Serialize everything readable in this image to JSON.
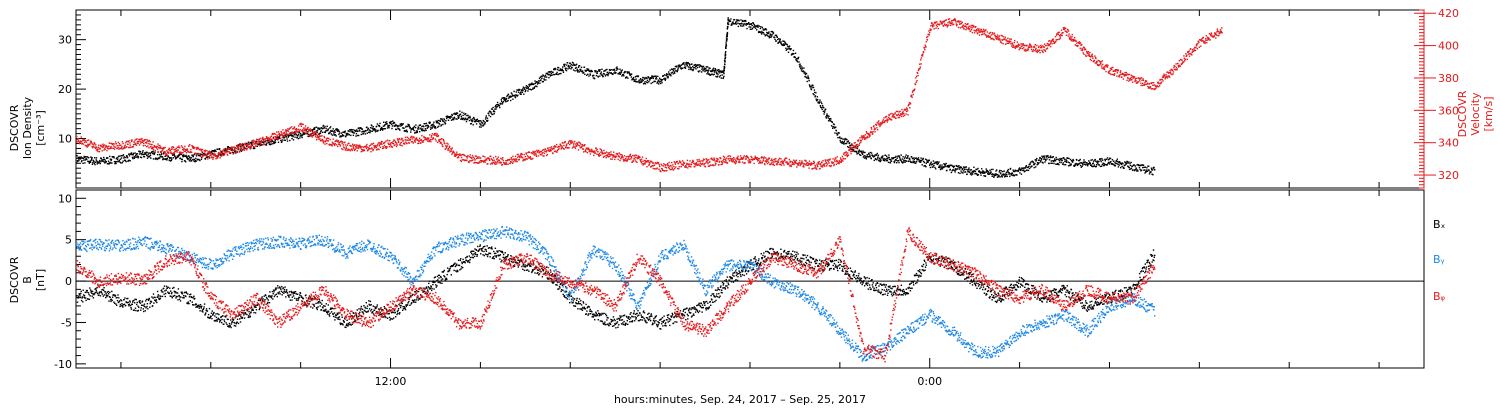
{
  "colors": {
    "black": "#000000",
    "red": "#e41a1c",
    "blue": "#1e88e5"
  },
  "x_axis": {
    "label": "hours:minutes, Sep. 24, 2017 – Sep. 25, 2017",
    "range_hours": [
      0,
      30
    ],
    "ticks": [
      {
        "hour": 7,
        "label": "12:00"
      },
      {
        "hour": 19,
        "label": "0:00"
      }
    ],
    "minor_step_hours": 2
  },
  "chart_data": [
    {
      "type": "scatter",
      "title": "",
      "xlabel": "",
      "y_left": {
        "label_lines": [
          "DSCOVR",
          "Ion Density",
          "[cm⁻³]"
        ],
        "range": [
          0,
          36
        ],
        "ticks": [
          10,
          20,
          30
        ]
      },
      "y_right": {
        "label_lines": [
          "DSCOVR",
          "Velocity",
          "[km/s]"
        ],
        "range": [
          312,
          422
        ],
        "ticks": [
          320,
          340,
          360,
          380,
          400,
          420
        ]
      },
      "series": [
        {
          "axis": "left",
          "color": "black",
          "x_hours": [
            0.0,
            0.5,
            1.0,
            1.5,
            2.0,
            2.5,
            3.0,
            3.5,
            4.0,
            4.5,
            5.0,
            5.5,
            6.0,
            6.5,
            7.0,
            7.5,
            8.0,
            8.5,
            9.0,
            9.5,
            10.0,
            10.5,
            11.0,
            11.5,
            12.0,
            12.5,
            13.0,
            13.5,
            14.0,
            14.4,
            14.5,
            15.0,
            15.5,
            16.0,
            16.5,
            17.0,
            17.5,
            18.0,
            18.5,
            19.0,
            19.5,
            20.0,
            20.5,
            21.0,
            21.5,
            22.0,
            22.5,
            23.0,
            23.5,
            24.0
          ],
          "values": [
            6,
            5.5,
            6,
            7,
            6.5,
            6,
            7,
            8,
            9,
            10,
            11,
            12,
            11,
            12,
            13,
            12,
            13,
            15,
            13,
            18,
            20,
            23,
            25,
            23,
            24,
            22,
            22,
            25,
            24,
            23,
            34,
            33,
            31,
            27,
            18,
            10,
            7,
            6,
            6,
            5,
            4,
            3.5,
            3,
            3.5,
            6,
            5.5,
            5,
            5.5,
            4.5,
            3.5
          ]
        },
        {
          "axis": "right",
          "color": "red",
          "x_hours": [
            0.0,
            0.5,
            1.0,
            1.5,
            2.0,
            2.5,
            3.0,
            3.5,
            4.0,
            4.5,
            5.0,
            5.5,
            6.0,
            6.5,
            7.0,
            7.5,
            8.0,
            8.5,
            9.0,
            9.5,
            10.0,
            10.5,
            11.0,
            11.5,
            12.0,
            12.5,
            13.0,
            13.5,
            14.0,
            14.5,
            15.0,
            15.5,
            16.0,
            16.5,
            17.0,
            17.5,
            18.0,
            18.5,
            19.0,
            19.5,
            20.0,
            20.5,
            21.0,
            21.5,
            22.0,
            22.5,
            23.0,
            23.5,
            24.0
          ],
          "values": [
            343,
            337,
            339,
            341,
            335,
            337,
            332,
            336,
            340,
            345,
            350,
            342,
            338,
            337,
            340,
            342,
            344,
            331,
            330,
            329,
            332,
            335,
            340,
            335,
            332,
            330,
            325,
            327,
            328,
            330,
            330,
            329,
            328,
            326,
            330,
            343,
            355,
            360,
            412,
            415,
            410,
            405,
            400,
            398,
            410,
            395,
            385,
            380,
            375
          ],
          "extra_x_hours": [
            24.5,
            25.0,
            25.5
          ],
          "extra_values": [
            388,
            402,
            410
          ]
        }
      ]
    },
    {
      "type": "scatter",
      "title": "",
      "xlabel": "",
      "y_left": {
        "label_lines": [
          "DSCOVR",
          "B",
          "[nT]"
        ],
        "range": [
          -10.5,
          11
        ],
        "ticks": [
          -10,
          -5,
          0,
          5,
          10
        ]
      },
      "legend": [
        "Bₓ",
        "Bᵧ",
        "Bᵩ"
      ],
      "legend_text": {
        "bx": "Bx",
        "by": "By",
        "bz": "Bz"
      },
      "series": [
        {
          "color": "black",
          "x_hours": [
            0.0,
            0.5,
            1.0,
            1.5,
            2.0,
            2.5,
            3.0,
            3.5,
            4.0,
            4.5,
            5.0,
            5.5,
            6.0,
            6.5,
            7.0,
            7.5,
            8.0,
            8.5,
            9.0,
            9.5,
            10.0,
            10.5,
            11.0,
            11.5,
            12.0,
            12.5,
            13.0,
            13.5,
            14.0,
            14.5,
            15.0,
            15.5,
            16.0,
            16.5,
            17.0,
            17.5,
            18.0,
            18.5,
            19.0,
            19.5,
            20.0,
            20.5,
            21.0,
            21.5,
            22.0,
            22.5,
            23.0,
            23.5,
            24.0
          ],
          "values": [
            -2,
            -1,
            -2.5,
            -3,
            -1,
            -2,
            -4,
            -5,
            -3,
            -1,
            -2,
            -3,
            -5,
            -3,
            -4,
            -2,
            0,
            2,
            4,
            3,
            2,
            1,
            -2,
            -4,
            -5,
            -4,
            -5,
            -4,
            -3,
            0,
            2,
            3.5,
            3,
            2,
            2,
            0,
            -1,
            -1,
            3,
            2,
            0,
            -2,
            0,
            -2,
            -1,
            -3,
            -2,
            -1,
            3.5
          ]
        },
        {
          "color": "blue",
          "x_hours": [
            0.0,
            0.5,
            1.0,
            1.5,
            2.0,
            2.5,
            3.0,
            3.5,
            4.0,
            4.5,
            5.0,
            5.5,
            6.0,
            6.5,
            7.0,
            7.5,
            8.0,
            8.5,
            9.0,
            9.5,
            10.0,
            10.5,
            11.0,
            11.5,
            12.0,
            12.5,
            13.0,
            13.5,
            14.0,
            14.5,
            15.0,
            15.5,
            16.0,
            16.5,
            17.0,
            17.5,
            18.0,
            18.5,
            19.0,
            19.5,
            20.0,
            20.5,
            21.0,
            21.5,
            22.0,
            22.5,
            23.0,
            23.5,
            24.0
          ],
          "values": [
            4.2,
            4.5,
            4.3,
            4.8,
            4.0,
            3.0,
            2.0,
            3.5,
            4.5,
            4.8,
            4.6,
            5.0,
            3.5,
            4.5,
            3.0,
            0.0,
            4.0,
            5.0,
            5.5,
            6.0,
            5.5,
            3.0,
            -2.0,
            4.0,
            2.0,
            -3.0,
            3.0,
            4.5,
            -1.0,
            2.0,
            2.0,
            0.0,
            -1.0,
            -3.0,
            -6.0,
            -9.0,
            -8.0,
            -6.0,
            -4.0,
            -6.0,
            -8.5,
            -8.5,
            -6.0,
            -5.0,
            -4.0,
            -6.0,
            -3.0,
            -2.0,
            -3.5
          ]
        },
        {
          "color": "red",
          "x_hours": [
            0.0,
            0.5,
            1.0,
            1.5,
            2.0,
            2.5,
            3.0,
            3.5,
            4.0,
            4.5,
            5.0,
            5.5,
            6.0,
            6.5,
            7.0,
            7.5,
            8.0,
            8.5,
            9.0,
            9.5,
            10.0,
            10.5,
            11.0,
            11.5,
            12.0,
            12.5,
            13.0,
            13.5,
            14.0,
            14.5,
            15.0,
            15.5,
            16.0,
            16.5,
            17.0,
            17.5,
            18.0,
            18.5,
            19.0,
            19.5,
            20.0,
            20.5,
            21.0,
            21.5,
            22.0,
            22.5,
            23.0,
            23.5,
            24.0
          ],
          "values": [
            2,
            0,
            0.5,
            0.2,
            2.5,
            3,
            -2,
            -4,
            -2,
            -5,
            -3,
            -1,
            -4,
            -5,
            -3,
            -1,
            -2,
            -5,
            -5,
            2,
            3,
            1,
            0,
            -1,
            -3,
            3,
            0,
            -5,
            -6,
            -3,
            0,
            3,
            2,
            1,
            5,
            -8,
            -9,
            6,
            3,
            2,
            1,
            -1,
            -2,
            -1,
            -3,
            -1,
            -2,
            -2,
            2
          ]
        }
      ]
    }
  ]
}
